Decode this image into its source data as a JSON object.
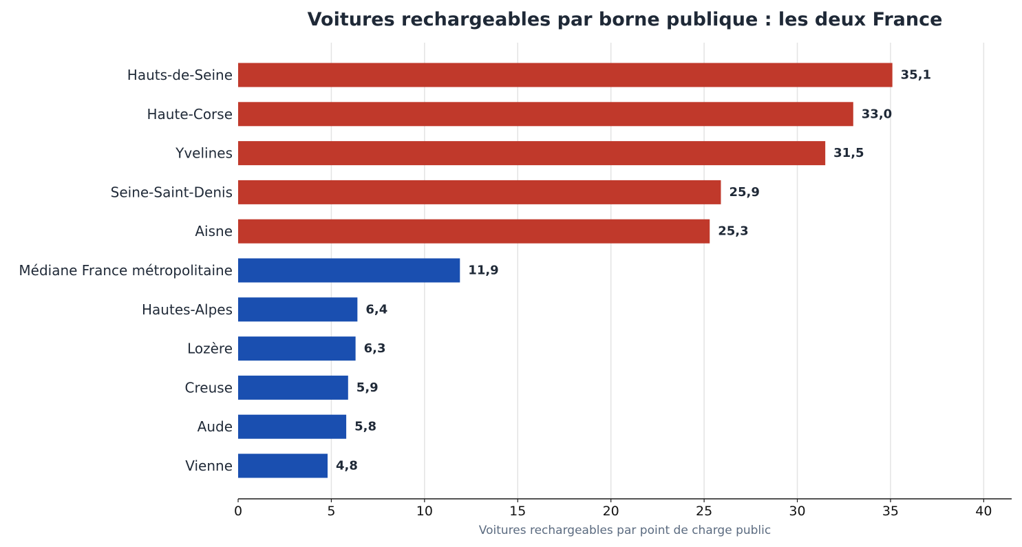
{
  "chart_data": {
    "type": "bar",
    "orientation": "horizontal",
    "title": "Voitures rechargeables par borne publique : les deux France",
    "xlabel": "Voitures rechargeables par point de charge public",
    "ylabel": "",
    "xlim": [
      0,
      41.5
    ],
    "xticks": [
      0,
      5,
      10,
      15,
      20,
      25,
      30,
      35,
      40
    ],
    "grid": "vertical",
    "categories": [
      "Hauts-de-Seine",
      "Haute-Corse",
      "Yvelines",
      "Seine-Saint-Denis",
      "Aisne",
      "Médiane France métropolitaine",
      "Hautes-Alpes",
      "Lozère",
      "Creuse",
      "Aude",
      "Vienne"
    ],
    "values": [
      35.1,
      33.0,
      31.5,
      25.9,
      25.3,
      11.9,
      6.4,
      6.3,
      5.9,
      5.8,
      4.8
    ],
    "value_labels": [
      "35,1",
      "33,0",
      "31,5",
      "25,9",
      "25,3",
      "11,9",
      "6,4",
      "6,3",
      "5,9",
      "5,8",
      "4,8"
    ],
    "bar_colors": [
      "#c0392b",
      "#c0392b",
      "#c0392b",
      "#c0392b",
      "#c0392b",
      "#1a4fb0",
      "#1a4fb0",
      "#1a4fb0",
      "#1a4fb0",
      "#1a4fb0",
      "#1a4fb0"
    ]
  }
}
